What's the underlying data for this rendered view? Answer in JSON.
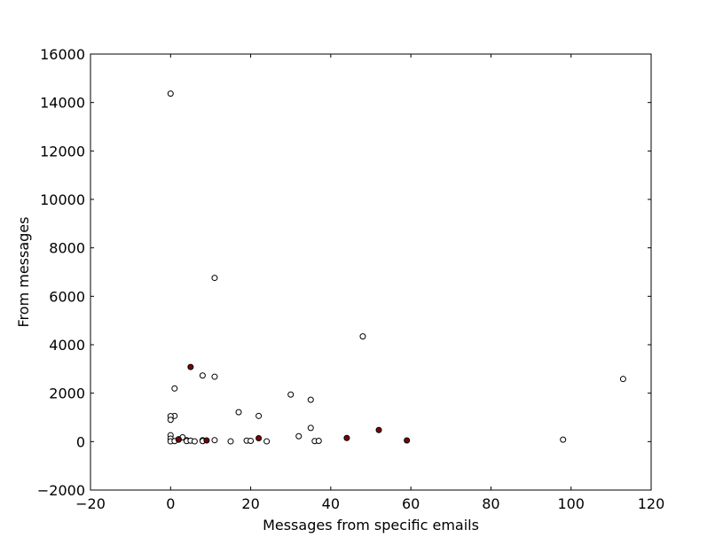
{
  "chart_data": {
    "type": "scatter",
    "title": "",
    "xlabel": "Messages from specific emails",
    "ylabel": "From messages",
    "xlim": [
      -20,
      120
    ],
    "ylim": [
      -2000,
      16000
    ],
    "xticks": [
      -20,
      0,
      20,
      40,
      60,
      80,
      100,
      120
    ],
    "yticks": [
      -2000,
      0,
      2000,
      4000,
      6000,
      8000,
      10000,
      12000,
      14000,
      16000
    ],
    "xtick_labels": [
      "−20",
      "0",
      "20",
      "40",
      "60",
      "80",
      "100",
      "120"
    ],
    "ytick_labels": [
      "−2000",
      "0",
      "2000",
      "4000",
      "6000",
      "8000",
      "10000",
      "12000",
      "14000",
      "16000"
    ],
    "grid": false,
    "legend": "none",
    "series": [
      {
        "color": "#ffffff",
        "points": [
          [
            0,
            14368
          ],
          [
            11,
            6759
          ],
          [
            48,
            4343
          ],
          [
            113,
            2585
          ],
          [
            8,
            2730
          ],
          [
            11,
            2680
          ],
          [
            1,
            2195
          ],
          [
            30,
            1941
          ],
          [
            35,
            1728
          ],
          [
            17,
            1215
          ],
          [
            22,
            1061
          ],
          [
            1,
            1061
          ],
          [
            0,
            1050
          ],
          [
            0,
            900
          ],
          [
            35,
            566
          ],
          [
            32,
            223
          ],
          [
            0,
            262
          ],
          [
            0,
            120
          ],
          [
            0,
            10
          ],
          [
            1,
            20
          ],
          [
            2,
            80
          ],
          [
            3,
            176
          ],
          [
            4,
            60
          ],
          [
            4,
            20
          ],
          [
            5,
            40
          ],
          [
            6,
            10
          ],
          [
            8,
            60
          ],
          [
            8,
            20
          ],
          [
            11,
            60
          ],
          [
            15,
            10
          ],
          [
            19,
            40
          ],
          [
            20,
            30
          ],
          [
            24,
            10
          ],
          [
            36,
            20
          ],
          [
            37,
            30
          ],
          [
            98,
            80
          ]
        ]
      },
      {
        "color": "#7f0000",
        "points": [
          [
            5,
            3080
          ],
          [
            2,
            100
          ],
          [
            9,
            50
          ],
          [
            22,
            140
          ],
          [
            44,
            150
          ],
          [
            52,
            480
          ],
          [
            59,
            50
          ]
        ]
      }
    ]
  }
}
